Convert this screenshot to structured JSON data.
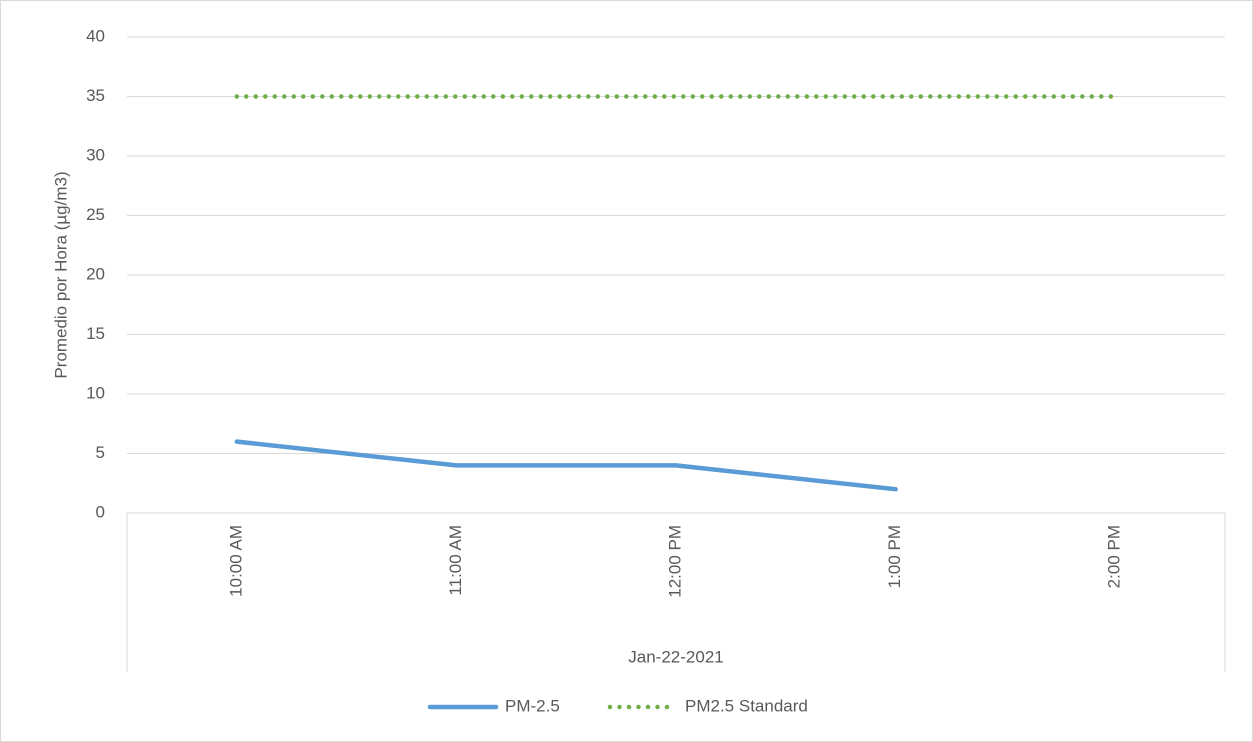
{
  "chart_data": {
    "type": "line",
    "y_axis_label": "Promedio por Hora (µg/m3)",
    "x_group": "Jan-22-2021",
    "categories": [
      "10:00 AM",
      "11:00 AM",
      "12:00 PM",
      "1:00 PM",
      "2:00 PM"
    ],
    "series": [
      {
        "name": "PM-2.5",
        "color": "#5b9bd5",
        "style": "solid",
        "values": [
          6,
          4,
          4,
          2,
          null
        ]
      },
      {
        "name": "PM2.5 Standard",
        "color": "#70ad47",
        "style": "dotted",
        "values": [
          35,
          35,
          35,
          35,
          35
        ]
      }
    ],
    "ylim": [
      0,
      40
    ],
    "yticks": [
      0,
      5,
      10,
      15,
      20,
      25,
      30,
      35,
      40
    ],
    "grid": true,
    "legend": "bottom"
  }
}
